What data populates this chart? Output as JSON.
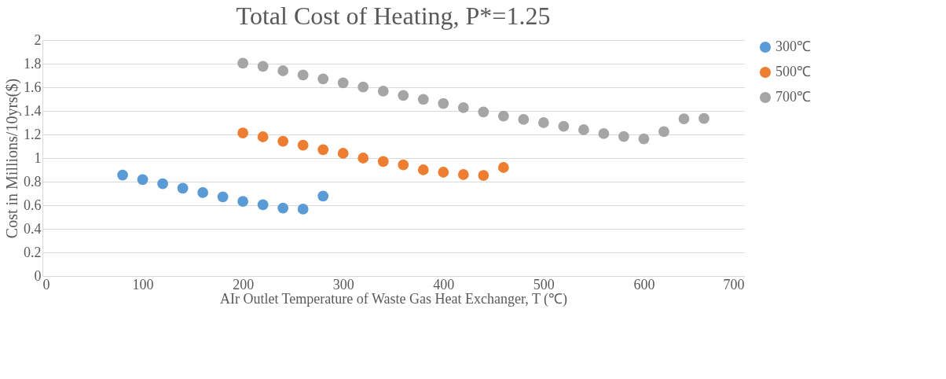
{
  "chart_data": {
    "type": "scatter",
    "title": "Total Cost of Heating, P*=1.25",
    "xlabel": "AIr Outlet Temperature of Waste Gas Heat Exchanger, T (℃)",
    "ylabel": "Cost in Millions/10yrs($)",
    "xlim": [
      0,
      700
    ],
    "xticks": [
      0,
      100,
      200,
      300,
      400,
      500,
      600,
      700
    ],
    "ylim": [
      0,
      2
    ],
    "yticks": [
      0,
      0.2,
      0.4,
      0.6,
      0.8,
      1,
      1.2,
      1.4,
      1.6,
      1.8,
      2
    ],
    "grid": "y",
    "legend": "right",
    "marker": "circle",
    "series": [
      {
        "name": "300℃",
        "color": "#5b9bd5",
        "x": [
          80,
          100,
          120,
          140,
          160,
          180,
          200,
          220,
          240,
          260,
          280
        ],
        "values": [
          0.856,
          0.818,
          0.782,
          0.744,
          0.707,
          0.671,
          0.633,
          0.604,
          0.576,
          0.567,
          0.678
        ]
      },
      {
        "name": "500℃",
        "color": "#ed7d31",
        "x": [
          200,
          220,
          240,
          260,
          280,
          300,
          320,
          340,
          360,
          380,
          400,
          420,
          440,
          460
        ],
        "values": [
          1.213,
          1.18,
          1.142,
          1.109,
          1.071,
          1.04,
          1.0,
          0.971,
          0.942,
          0.9,
          0.88,
          0.86,
          0.853,
          0.92
        ]
      },
      {
        "name": "700℃",
        "color": "#a5a5a5",
        "x": [
          200,
          220,
          240,
          260,
          280,
          300,
          320,
          340,
          360,
          380,
          400,
          420,
          440,
          460,
          480,
          500,
          520,
          540,
          560,
          580,
          600,
          620,
          640,
          660
        ],
        "values": [
          1.804,
          1.778,
          1.74,
          1.704,
          1.671,
          1.638,
          1.602,
          1.567,
          1.531,
          1.498,
          1.462,
          1.427,
          1.391,
          1.356,
          1.327,
          1.3,
          1.269,
          1.24,
          1.207,
          1.182,
          1.162,
          1.224,
          1.333,
          1.336
        ]
      }
    ]
  }
}
